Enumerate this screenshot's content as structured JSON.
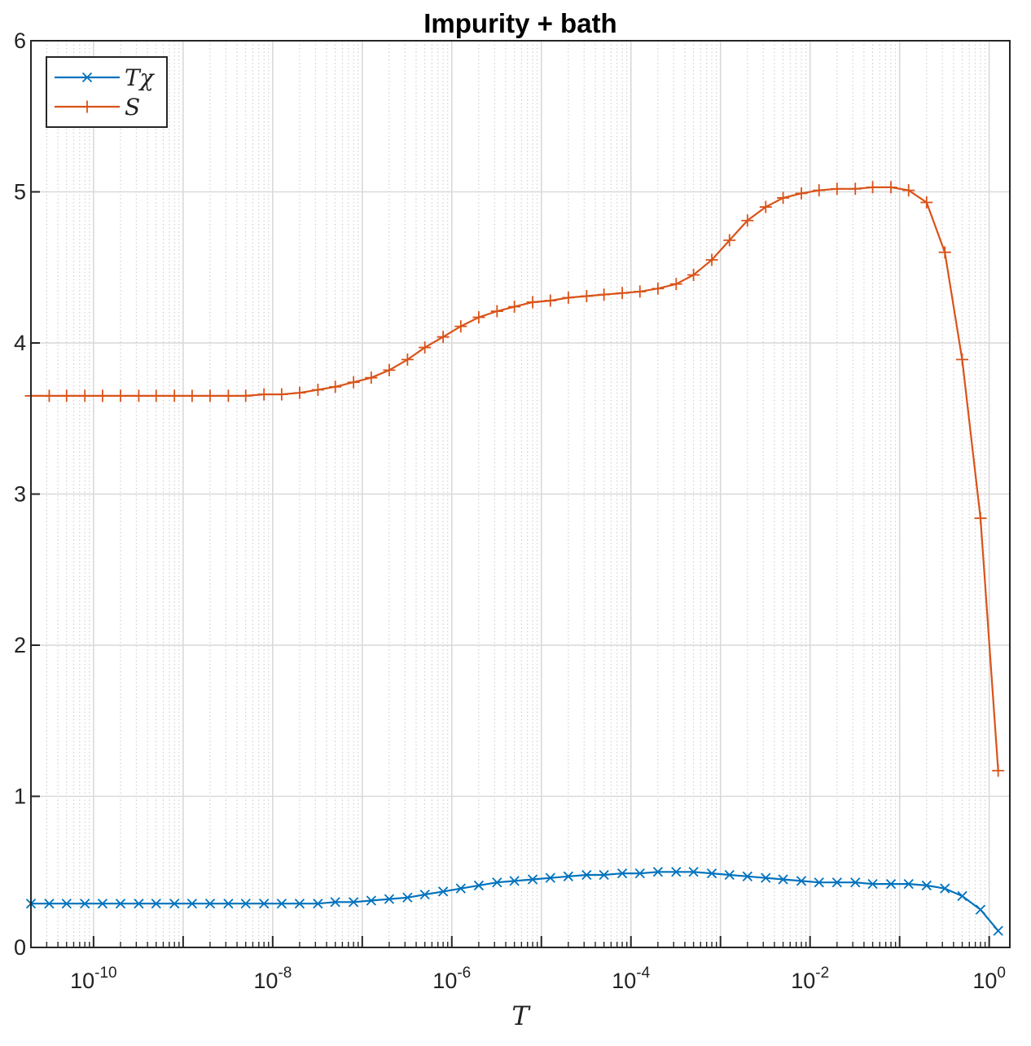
{
  "chart_data": {
    "type": "line",
    "title": "Impurity + bath",
    "xlabel": "T",
    "ylabel": "",
    "xscale": "log",
    "xlim": [
      2e-11,
      1.7
    ],
    "ylim": [
      0,
      6
    ],
    "yticks": [
      0,
      1,
      2,
      3,
      4,
      5,
      6
    ],
    "xticks": [
      {
        "value": 1e-10,
        "base": "10",
        "exp": "-10"
      },
      {
        "value": 1e-08,
        "base": "10",
        "exp": "-8"
      },
      {
        "value": 1e-06,
        "base": "10",
        "exp": "-6"
      },
      {
        "value": 0.0001,
        "base": "10",
        "exp": "-4"
      },
      {
        "value": 0.01,
        "base": "10",
        "exp": "-2"
      },
      {
        "value": 1,
        "base": "10",
        "exp": "0"
      }
    ],
    "grid": true,
    "legend_position": "top-left",
    "x": [
      2e-11,
      3.2e-11,
      5e-11,
      8e-11,
      1.26e-10,
      2e-10,
      3.2e-10,
      5e-10,
      8e-10,
      1.26e-09,
      2e-09,
      3.2e-09,
      5e-09,
      8e-09,
      1.26e-08,
      2e-08,
      3.2e-08,
      5e-08,
      8e-08,
      1.26e-07,
      2e-07,
      3.2e-07,
      5e-07,
      8e-07,
      1.26e-06,
      2e-06,
      3.2e-06,
      5e-06,
      8e-06,
      1.26e-05,
      2e-05,
      3.2e-05,
      5e-05,
      8e-05,
      0.000126,
      0.0002,
      0.00032,
      0.0005,
      0.0008,
      0.00126,
      0.002,
      0.0032,
      0.005,
      0.008,
      0.0126,
      0.02,
      0.032,
      0.05,
      0.08,
      0.126,
      0.2,
      0.32,
      0.5,
      0.8,
      1.26
    ],
    "series": [
      {
        "name": "Tχ",
        "color": "#0072BD",
        "marker": "x",
        "values": [
          0.29,
          0.29,
          0.29,
          0.29,
          0.29,
          0.29,
          0.29,
          0.29,
          0.29,
          0.29,
          0.29,
          0.29,
          0.29,
          0.29,
          0.29,
          0.29,
          0.29,
          0.3,
          0.3,
          0.31,
          0.32,
          0.33,
          0.35,
          0.37,
          0.39,
          0.41,
          0.43,
          0.44,
          0.45,
          0.46,
          0.47,
          0.48,
          0.48,
          0.49,
          0.49,
          0.5,
          0.5,
          0.5,
          0.49,
          0.48,
          0.47,
          0.46,
          0.45,
          0.44,
          0.43,
          0.43,
          0.43,
          0.42,
          0.42,
          0.42,
          0.41,
          0.39,
          0.34,
          0.25,
          0.11
        ]
      },
      {
        "name": "S",
        "color": "#D95319",
        "marker": "+",
        "values": [
          3.65,
          3.65,
          3.65,
          3.65,
          3.65,
          3.65,
          3.65,
          3.65,
          3.65,
          3.65,
          3.65,
          3.65,
          3.65,
          3.66,
          3.66,
          3.67,
          3.69,
          3.71,
          3.74,
          3.77,
          3.82,
          3.89,
          3.97,
          4.04,
          4.11,
          4.17,
          4.21,
          4.24,
          4.27,
          4.28,
          4.3,
          4.31,
          4.32,
          4.33,
          4.34,
          4.36,
          4.39,
          4.45,
          4.55,
          4.68,
          4.81,
          4.9,
          4.96,
          4.99,
          5.01,
          5.02,
          5.02,
          5.03,
          5.03,
          5.01,
          4.93,
          4.6,
          3.89,
          2.84,
          1.17
        ]
      }
    ]
  }
}
